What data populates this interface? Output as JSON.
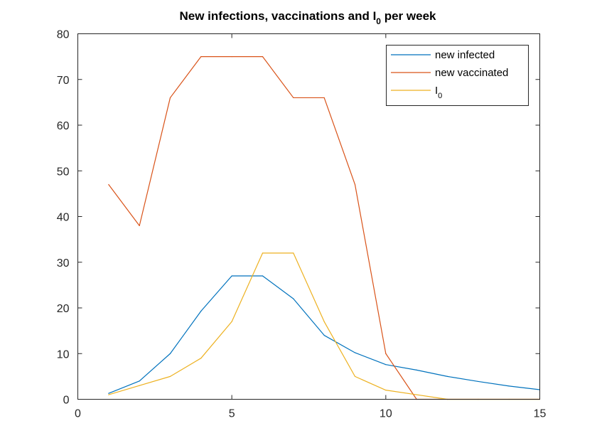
{
  "chart_data": {
    "type": "line",
    "title": "New infections, vaccinations and I",
    "title_subscript": "0",
    "title_suffix": " per week",
    "xlabel": "",
    "ylabel": "",
    "xlim": [
      0,
      15
    ],
    "ylim": [
      0,
      80
    ],
    "xticks": [
      "0",
      "5",
      "10",
      "15"
    ],
    "yticks": [
      "0",
      "10",
      "20",
      "30",
      "40",
      "50",
      "60",
      "70",
      "80"
    ],
    "grid": false,
    "legend_position": "top-right",
    "x": [
      1,
      2,
      3,
      4,
      5,
      6,
      7,
      8,
      9,
      10,
      11,
      12,
      13,
      14,
      15
    ],
    "series": [
      {
        "name": "new infected",
        "color": "#0072BD",
        "values": [
          1.3,
          4,
          10,
          19.3,
          27,
          27,
          22,
          14,
          10.2,
          7.6,
          6.4,
          5,
          3.9,
          2.9,
          2.1
        ]
      },
      {
        "name": "new vaccinated",
        "color": "#D95319",
        "values": [
          47,
          38,
          66,
          75,
          75,
          75,
          66,
          66,
          47,
          10,
          0,
          0,
          0,
          0,
          0
        ]
      },
      {
        "name": "I",
        "name_subscript": "0",
        "color": "#EDB120",
        "values": [
          1,
          3,
          5,
          9,
          17,
          32,
          32,
          17,
          5,
          2,
          1,
          0,
          0,
          0,
          0
        ]
      }
    ]
  }
}
